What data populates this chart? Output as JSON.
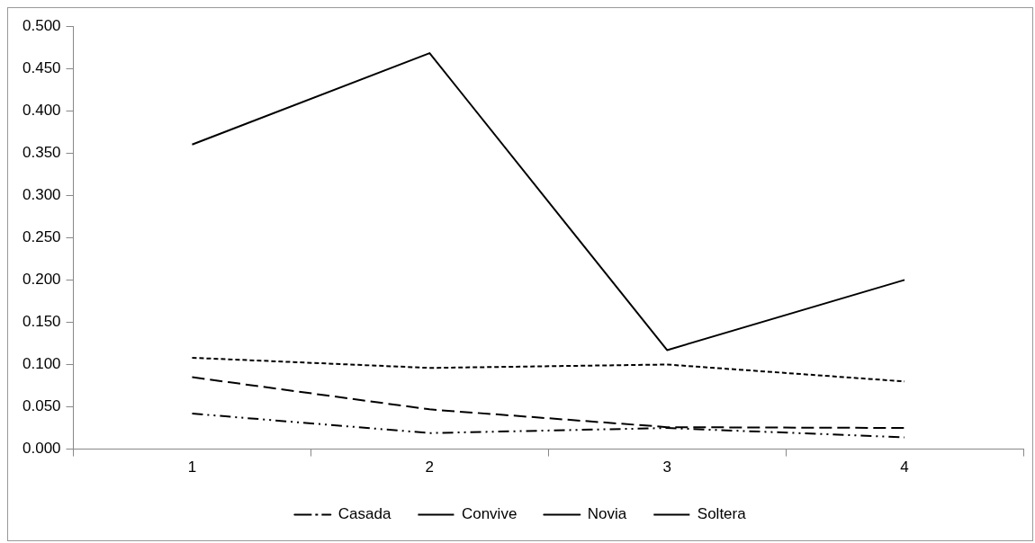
{
  "chart_data": {
    "type": "line",
    "categories": [
      "1",
      "2",
      "3",
      "4"
    ],
    "series": [
      {
        "name": "Casada",
        "color": "#000000",
        "line_style": "dashdot",
        "values": [
          0.042,
          0.019,
          0.025,
          0.014
        ]
      },
      {
        "name": "Convive",
        "color": "#000000",
        "line_style": "dotted",
        "values": [
          0.108,
          0.096,
          0.1,
          0.08
        ]
      },
      {
        "name": "Novia",
        "color": "#000000",
        "line_style": "solid",
        "values": [
          0.36,
          0.468,
          0.117,
          0.2
        ]
      },
      {
        "name": "Soltera",
        "color": "#000000",
        "line_style": "dashed",
        "values": [
          0.085,
          0.047,
          0.026,
          0.025
        ]
      }
    ],
    "ylim": [
      0,
      0.5
    ],
    "yticks": [
      {
        "value": 0,
        "label": "0.000"
      },
      {
        "value": 0.05,
        "label": "0.050"
      },
      {
        "value": 0.1,
        "label": "0.100"
      },
      {
        "value": 0.15,
        "label": "0.150"
      },
      {
        "value": 0.2,
        "label": "0.200"
      },
      {
        "value": 0.25,
        "label": "0.250"
      },
      {
        "value": 0.3,
        "label": "0.300"
      },
      {
        "value": 0.35,
        "label": "0.350"
      },
      {
        "value": 0.4,
        "label": "0.400"
      },
      {
        "value": 0.45,
        "label": "0.450"
      },
      {
        "value": 0.5,
        "label": "0.500"
      }
    ],
    "grid": false,
    "legend": "bottom",
    "marker": "none"
  }
}
